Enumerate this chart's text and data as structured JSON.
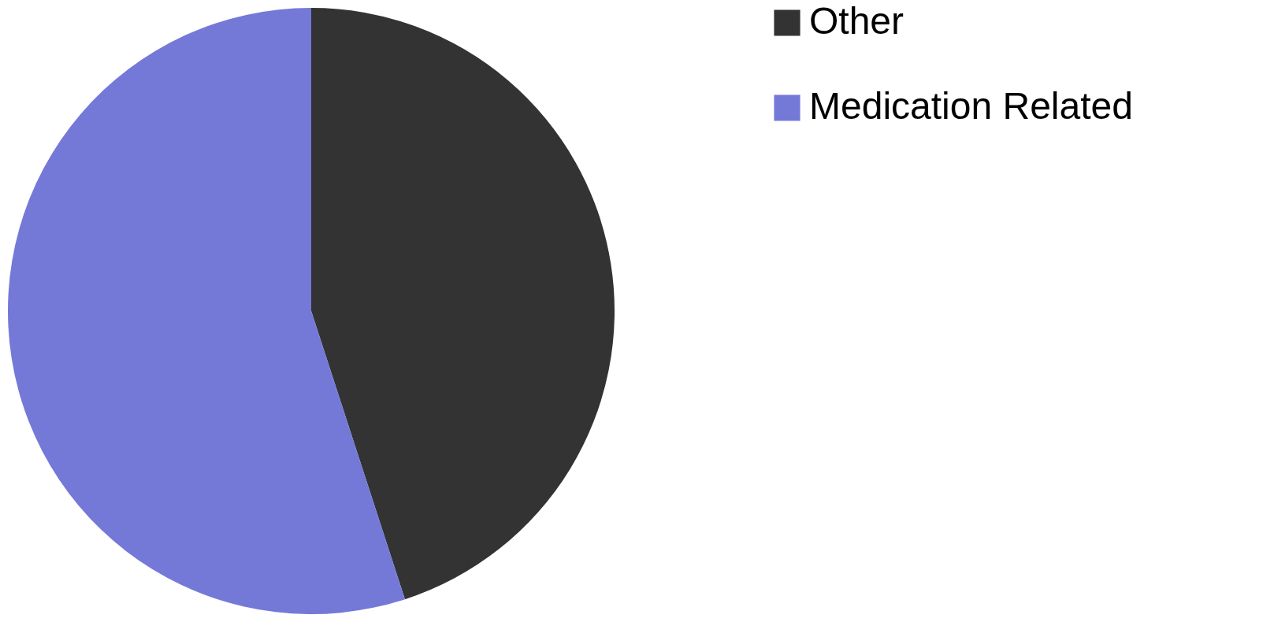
{
  "chart_data": {
    "type": "pie",
    "categories": [
      "Other",
      "Medication Related"
    ],
    "values": [
      45,
      55
    ],
    "colors": [
      "#333333",
      "#7479d8"
    ],
    "legend": "right"
  }
}
